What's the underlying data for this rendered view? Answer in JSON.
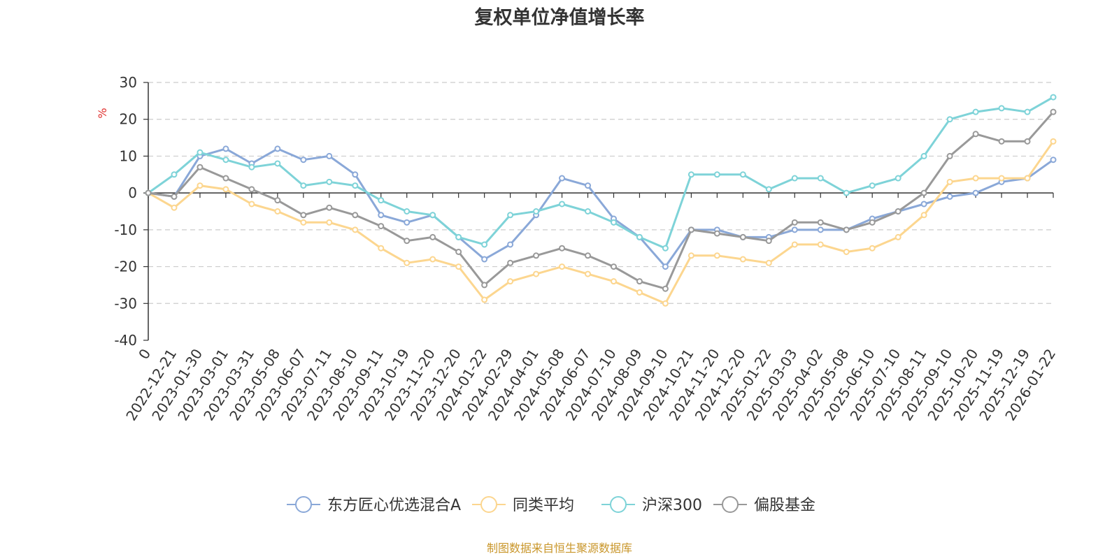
{
  "chart_data": {
    "type": "line",
    "title": "复权单位净值增长率",
    "ylabel": "%",
    "xlabel": "",
    "ylim": [
      -40,
      30
    ],
    "yticks": [
      30,
      20,
      10,
      0,
      -10,
      -20,
      -30,
      -40
    ],
    "grid": true,
    "legend_position": "bottom-center",
    "categories": [
      "0",
      "2022-12-21",
      "2023-01-30",
      "2023-03-01",
      "2023-03-31",
      "2023-05-08",
      "2023-06-07",
      "2023-07-11",
      "2023-08-10",
      "2023-09-11",
      "2023-10-19",
      "2023-11-20",
      "2023-12-20",
      "2024-01-22",
      "2024-02-29",
      "2024-04-01",
      "2024-05-08",
      "2024-06-07",
      "2024-07-10",
      "2024-08-09",
      "2024-09-10",
      "2024-10-21",
      "2024-11-20",
      "2024-12-20",
      "2025-01-22",
      "2025-03-03",
      "2025-04-02",
      "2025-05-08",
      "2025-06-10",
      "2025-07-10",
      "2025-08-11",
      "2025-09-10",
      "2025-10-20",
      "2025-11-19",
      "2025-12-19",
      "2026-01-22"
    ],
    "series": [
      {
        "name": "东方匠心优选混合A",
        "color": "#8aa8d8",
        "values": [
          0,
          -1,
          10,
          12,
          8,
          12,
          9,
          10,
          5,
          -6,
          -8,
          -6,
          -12,
          -18,
          -14,
          -6,
          4,
          2,
          -7,
          -12,
          -20,
          -10,
          -10,
          -12,
          -12,
          -10,
          -10,
          -10,
          -7,
          -5,
          -3,
          -1,
          0,
          3,
          4,
          9
        ]
      },
      {
        "name": "同类平均",
        "color": "#fcd68f",
        "values": [
          0,
          -4,
          2,
          1,
          -3,
          -5,
          -8,
          -8,
          -10,
          -15,
          -19,
          -18,
          -20,
          -29,
          -24,
          -22,
          -20,
          -22,
          -24,
          -27,
          -30,
          -17,
          -17,
          -18,
          -19,
          -14,
          -14,
          -16,
          -15,
          -12,
          -6,
          3,
          4,
          4,
          4,
          14
        ]
      },
      {
        "name": "沪深300",
        "color": "#7ed3d8",
        "values": [
          0,
          5,
          11,
          9,
          7,
          8,
          2,
          3,
          2,
          -2,
          -5,
          -6,
          -12,
          -14,
          -6,
          -5,
          -3,
          -5,
          -8,
          -12,
          -15,
          5,
          5,
          5,
          1,
          4,
          4,
          0,
          2,
          4,
          10,
          20,
          22,
          23,
          22,
          26
        ]
      },
      {
        "name": "偏股基金",
        "color": "#999999",
        "values": [
          0,
          -1,
          7,
          4,
          1,
          -2,
          -6,
          -4,
          -6,
          -9,
          -13,
          -12,
          -16,
          -25,
          -19,
          -17,
          -15,
          -17,
          -20,
          -24,
          -26,
          -10,
          -11,
          -12,
          -13,
          -8,
          -8,
          -10,
          -8,
          -5,
          0,
          10,
          16,
          14,
          14,
          22
        ]
      }
    ]
  },
  "footer": {
    "source": "制图数据来自恒生聚源数据库"
  }
}
